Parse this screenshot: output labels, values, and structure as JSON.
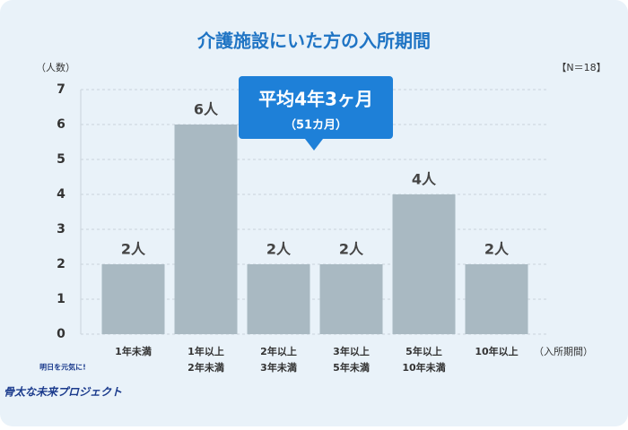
{
  "chart_data": {
    "type": "bar",
    "title": "介護施設にいた方の入所期間",
    "y_label": "（人数）",
    "x_label": "（入所期間）",
    "note": "【N＝18】",
    "annotation": "平均4年3ヶ月",
    "annotation_sub": "（51カ月）",
    "categories": [
      [
        "1年未満"
      ],
      [
        "1年以上",
        "2年未満"
      ],
      [
        "2年以上",
        "3年未満"
      ],
      [
        "3年以上",
        "5年未満"
      ],
      [
        "5年以上",
        "10年未満"
      ],
      [
        "10年以上"
      ]
    ],
    "values": [
      2,
      6,
      2,
      2,
      4,
      2
    ],
    "value_labels": [
      "2人",
      "6人",
      "2人",
      "2人",
      "4人",
      "2人"
    ],
    "color": "#a9b9c2",
    "ylim": [
      0,
      7
    ],
    "yticks": [
      0,
      1,
      2,
      3,
      4,
      5,
      6,
      7
    ],
    "grid": true
  },
  "logo": {
    "tagline": "明日を元気に!",
    "name": "骨太な未来プロジェクト"
  }
}
